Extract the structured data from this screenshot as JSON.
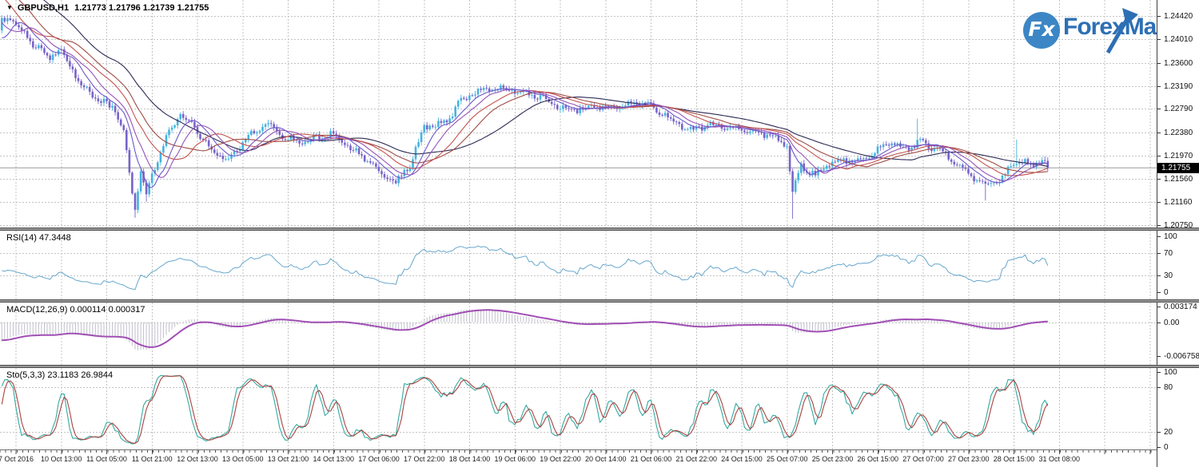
{
  "window": {
    "collapse_glyph": "▼",
    "symbol_period": "GBPUSD,H1",
    "ohlc_values": "1.21773 1.21796 1.21739 1.21755"
  },
  "logo": {
    "badge_text": "Fx",
    "brand": "ForexMart",
    "brand_color": "#2d6fb5",
    "badge_bg": "#3c86c5"
  },
  "colors": {
    "background": "#ffffff",
    "grid": "#c4c4c4",
    "up_candle": "#45b3e0",
    "down_candle": "#7863c9",
    "price_line": "#9a9a9a",
    "current_price_bg": "#000000",
    "current_price_text": "#ffffff",
    "rsi_line": "#67a7cc",
    "macd_histogram": "#c0c0cc",
    "macd_signal": "#a04fb4",
    "stochastic_k": "#35a9a2",
    "stochastic_d": "#a8443f",
    "axis_text": "#111111"
  },
  "time_axis": {
    "labels": [
      "7 Oct 2016",
      "10 Oct 13:00",
      "11 Oct 05:00",
      "11 Oct 21:00",
      "12 Oct 13:00",
      "13 Oct 05:00",
      "13 Oct 21:00",
      "14 Oct 13:00",
      "17 Oct 06:00",
      "17 Oct 22:00",
      "18 Oct 14:00",
      "19 Oct 06:00",
      "19 Oct 22:00",
      "20 Oct 14:00",
      "21 Oct 06:00",
      "21 Oct 22:00",
      "24 Oct 15:00",
      "25 Oct 07:00",
      "25 Oct 23:00",
      "26 Oct 15:00",
      "27 Oct 07:00",
      "27 Oct 23:00",
      "28 Oct 15:00",
      "31 Oct 08:00"
    ]
  },
  "chart_data": [
    {
      "type": "candlestick",
      "symbol": "GBPUSD",
      "timeframe": "H1",
      "open": 1.21773,
      "high": 1.21796,
      "low": 1.21739,
      "close": 1.21755,
      "bars": 370,
      "scale": {
        "vmax": 1.2442,
        "vmin": 1.2075
      },
      "axis_labels": [
        "1.24420",
        "1.24010",
        "1.23600",
        "1.23190",
        "1.22790",
        "1.22380",
        "1.21970",
        "1.21560",
        "1.21160",
        "1.20750"
      ],
      "current_price_label": "1.21755",
      "close_keypoints": [
        [
          0,
          1.2432
        ],
        [
          3,
          1.2437
        ],
        [
          6,
          1.242
        ],
        [
          10,
          1.2398
        ],
        [
          17,
          1.2372
        ],
        [
          21,
          1.2382
        ],
        [
          28,
          1.2318
        ],
        [
          34,
          1.2298
        ],
        [
          39,
          1.2283
        ],
        [
          43,
          1.224
        ],
        [
          45,
          1.216
        ],
        [
          47,
          1.2105
        ],
        [
          49,
          1.2165
        ],
        [
          51,
          1.213
        ],
        [
          54,
          1.218
        ],
        [
          58,
          1.223
        ],
        [
          63,
          1.2268
        ],
        [
          68,
          1.2245
        ],
        [
          74,
          1.221
        ],
        [
          80,
          1.2192
        ],
        [
          86,
          1.2222
        ],
        [
          94,
          1.2258
        ],
        [
          100,
          1.2228
        ],
        [
          106,
          1.2216
        ],
        [
          116,
          1.2238
        ],
        [
          124,
          1.2205
        ],
        [
          133,
          1.2172
        ],
        [
          139,
          1.215
        ],
        [
          144,
          1.218
        ],
        [
          149,
          1.2245
        ],
        [
          157,
          1.2258
        ],
        [
          161,
          1.229
        ],
        [
          169,
          1.231
        ],
        [
          176,
          1.2318
        ],
        [
          180,
          1.2315
        ],
        [
          188,
          1.23
        ],
        [
          195,
          1.2288
        ],
        [
          203,
          1.2278
        ],
        [
          214,
          1.2282
        ],
        [
          224,
          1.229
        ],
        [
          233,
          1.2272
        ],
        [
          243,
          1.2242
        ],
        [
          252,
          1.225
        ],
        [
          262,
          1.2242
        ],
        [
          272,
          1.2228
        ],
        [
          277,
          1.2218
        ],
        [
          279,
          1.2134
        ],
        [
          282,
          1.218
        ],
        [
          287,
          1.2162
        ],
        [
          295,
          1.2192
        ],
        [
          303,
          1.2188
        ],
        [
          314,
          1.222
        ],
        [
          320,
          1.2208
        ],
        [
          323,
          1.2222
        ],
        [
          330,
          1.2205
        ],
        [
          338,
          1.2178
        ],
        [
          347,
          1.2142
        ],
        [
          352,
          1.215
        ],
        [
          358,
          1.2192
        ],
        [
          364,
          1.218
        ],
        [
          368,
          1.2188
        ],
        [
          369,
          1.21755
        ]
      ],
      "wick_overrides": [
        [
          3,
          "high",
          1.2443
        ],
        [
          47,
          "low",
          1.2088
        ],
        [
          51,
          "low",
          1.2116
        ],
        [
          279,
          "low",
          1.2086
        ],
        [
          323,
          "high",
          1.2262
        ],
        [
          347,
          "low",
          1.2118
        ],
        [
          358,
          "high",
          1.2225
        ]
      ],
      "moving_averages": [
        {
          "period": 44,
          "color": "#2a2a55"
        },
        {
          "period": 28,
          "color": "#9e4b43"
        },
        {
          "period": 21,
          "color": "#c4524e"
        },
        {
          "period": 13,
          "color": "#9552b6"
        },
        {
          "period": 8,
          "color": "#6b57c9"
        }
      ]
    },
    {
      "type": "line",
      "indicator": "RSI",
      "label": "RSI(14) 47.3448",
      "period": 14,
      "current_value": 47.3448,
      "levels": [
        70,
        30
      ],
      "axis_labels": [
        "100",
        "70",
        "30",
        "0"
      ],
      "scale": {
        "vmax": 100,
        "vmin": 0
      }
    },
    {
      "type": "macd",
      "indicator": "MACD",
      "label": "MACD(12,26,9) 0.000114 0.000317",
      "params": [
        12,
        26,
        9
      ],
      "current_macd": 0.000114,
      "current_signal": 0.000317,
      "levels": [
        0
      ],
      "axis_labels": [
        "0.003174",
        "0.00",
        "-0.006758"
      ],
      "scale": {
        "vmax": 0.0033,
        "vmin": -0.00826
      }
    },
    {
      "type": "stochastic",
      "indicator": "Stochastic",
      "label": "Sto(5,3,3) 23.1183 26.9844",
      "params": [
        5,
        3,
        3
      ],
      "current_k": 23.1183,
      "current_d": 26.9844,
      "levels": [
        80,
        20
      ],
      "axis_labels": [
        "100",
        "80",
        "20",
        "0"
      ],
      "scale": {
        "vmax": 100,
        "vmin": 0
      }
    }
  ]
}
